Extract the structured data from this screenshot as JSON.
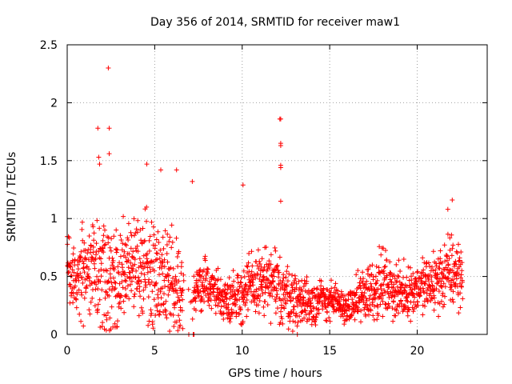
{
  "chart_data": {
    "type": "scatter",
    "title": "Day 356 of 2014, SRMTID for receiver maw1",
    "xlabel": "GPS time / hours",
    "ylabel": "SRMTID / TECUs",
    "xlim": [
      0,
      24
    ],
    "ylim": [
      0,
      2.5
    ],
    "x_ticks": [
      0,
      5,
      10,
      15,
      20
    ],
    "y_ticks": [
      0,
      0.5,
      1,
      1.5,
      2,
      2.5
    ],
    "x_tick_labels": [
      "0",
      "5",
      "10",
      "15",
      "20"
    ],
    "y_tick_labels": [
      "0",
      "0.5",
      "1",
      "1.5",
      "2",
      "2.5"
    ],
    "grid": true,
    "marker": "+",
    "series_color": "#ff0000",
    "envelope_hours": [
      0,
      1,
      2,
      3,
      4,
      5,
      6,
      7,
      8,
      9,
      10,
      11,
      12,
      13,
      14,
      15,
      16,
      17,
      18,
      19,
      20,
      21,
      22,
      22.6
    ],
    "envelope_median": [
      0.5,
      0.55,
      0.45,
      0.5,
      0.6,
      0.55,
      0.45,
      0.3,
      0.45,
      0.3,
      0.35,
      0.45,
      0.4,
      0.3,
      0.28,
      0.3,
      0.22,
      0.35,
      0.45,
      0.35,
      0.4,
      0.45,
      0.55,
      0.5
    ],
    "envelope_spread": [
      0.25,
      0.35,
      0.45,
      0.4,
      0.4,
      0.45,
      0.4,
      0.2,
      0.2,
      0.15,
      0.25,
      0.25,
      0.3,
      0.2,
      0.2,
      0.15,
      0.1,
      0.25,
      0.25,
      0.2,
      0.2,
      0.25,
      0.3,
      0.25
    ],
    "outliers": [
      {
        "x": 2.35,
        "y": 2.3
      },
      {
        "x": 1.75,
        "y": 1.78
      },
      {
        "x": 2.4,
        "y": 1.78
      },
      {
        "x": 2.4,
        "y": 1.56
      },
      {
        "x": 1.8,
        "y": 1.53
      },
      {
        "x": 1.85,
        "y": 1.47
      },
      {
        "x": 12.15,
        "y": 1.86
      },
      {
        "x": 12.2,
        "y": 1.86
      },
      {
        "x": 12.2,
        "y": 1.65
      },
      {
        "x": 12.2,
        "y": 1.63
      },
      {
        "x": 12.2,
        "y": 1.46
      },
      {
        "x": 12.2,
        "y": 1.44
      },
      {
        "x": 12.2,
        "y": 1.15
      },
      {
        "x": 4.55,
        "y": 1.47
      },
      {
        "x": 5.35,
        "y": 1.42
      },
      {
        "x": 6.25,
        "y": 1.42
      },
      {
        "x": 7.15,
        "y": 1.32
      },
      {
        "x": 10.05,
        "y": 1.29
      },
      {
        "x": 21.75,
        "y": 1.08
      },
      {
        "x": 22.0,
        "y": 1.16
      },
      {
        "x": 7.2,
        "y": 0.0
      },
      {
        "x": 7.25,
        "y": 0.0
      },
      {
        "x": 13.15,
        "y": 0.0
      },
      {
        "x": 6.95,
        "y": 0.0
      }
    ]
  }
}
